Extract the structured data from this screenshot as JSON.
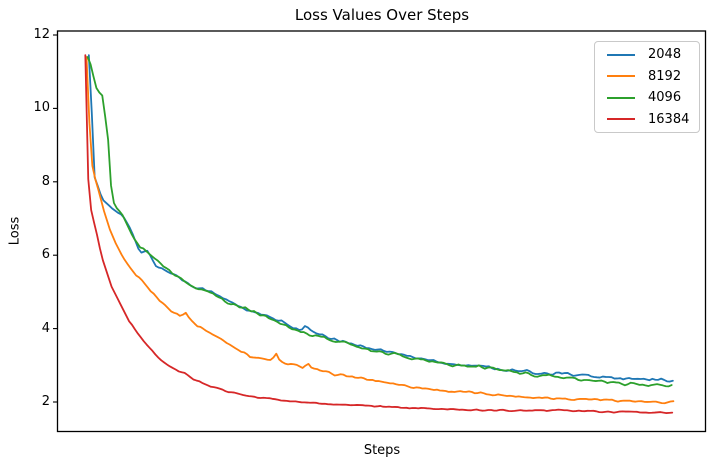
{
  "chart_data": {
    "type": "line",
    "title": "Loss Values Over Steps",
    "xlabel": "Steps",
    "ylabel": "Loss",
    "x_note": "x axis shows no tick labels; x values are normalized 0..1 across the plotted step range",
    "ylim": [
      1.15,
      12.15
    ],
    "y_ticks": [
      2,
      4,
      6,
      8,
      10,
      12
    ],
    "x_ticks": [],
    "grid": false,
    "legend_position": "upper right",
    "axis_color": "#000000",
    "legend_border_color": "#c9c9c9",
    "series": [
      {
        "name": "2048",
        "color": "#1f77b4",
        "points": [
          [
            -0.002,
            11.45
          ],
          [
            0.0,
            11.62
          ],
          [
            0.002,
            10.5
          ],
          [
            0.004,
            9.3
          ],
          [
            0.005,
            8.25
          ],
          [
            0.012,
            7.95
          ],
          [
            0.021,
            7.52
          ],
          [
            0.038,
            7.28
          ],
          [
            0.055,
            7.1
          ],
          [
            0.065,
            6.85
          ],
          [
            0.072,
            6.62
          ],
          [
            0.086,
            6.05
          ],
          [
            0.099,
            6.1
          ],
          [
            0.115,
            5.68
          ],
          [
            0.13,
            5.58
          ],
          [
            0.142,
            5.5
          ],
          [
            0.171,
            5.2
          ],
          [
            0.2,
            5.05
          ],
          [
            0.236,
            4.76
          ],
          [
            0.274,
            4.48
          ],
          [
            0.308,
            4.3
          ],
          [
            0.331,
            4.16
          ],
          [
            0.36,
            3.96
          ],
          [
            0.368,
            4.05
          ],
          [
            0.389,
            3.84
          ],
          [
            0.416,
            3.72
          ],
          [
            0.445,
            3.6
          ],
          [
            0.474,
            3.5
          ],
          [
            0.502,
            3.4
          ],
          [
            0.531,
            3.3
          ],
          [
            0.56,
            3.2
          ],
          [
            0.587,
            3.13
          ],
          [
            0.616,
            3.05
          ],
          [
            0.645,
            3.0
          ],
          [
            0.668,
            2.98
          ],
          [
            0.693,
            2.92
          ],
          [
            0.719,
            2.86
          ],
          [
            0.745,
            2.83
          ],
          [
            0.77,
            2.79
          ],
          [
            0.796,
            2.79
          ],
          [
            0.805,
            2.81
          ],
          [
            0.83,
            2.73
          ],
          [
            0.856,
            2.7
          ],
          [
            0.89,
            2.66
          ],
          [
            0.919,
            2.63
          ],
          [
            0.95,
            2.61
          ],
          [
            0.976,
            2.6
          ],
          [
            1.0,
            2.6
          ]
        ]
      },
      {
        "name": "8192",
        "color": "#ff7f0e",
        "points": [
          [
            -0.006,
            11.4
          ],
          [
            -0.004,
            11.62
          ],
          [
            -0.002,
            10.2
          ],
          [
            0.0,
            9.0
          ],
          [
            0.005,
            8.3
          ],
          [
            0.014,
            7.8
          ],
          [
            0.024,
            7.2
          ],
          [
            0.034,
            6.7
          ],
          [
            0.046,
            6.25
          ],
          [
            0.06,
            5.85
          ],
          [
            0.074,
            5.55
          ],
          [
            0.087,
            5.35
          ],
          [
            0.103,
            5.05
          ],
          [
            0.12,
            4.75
          ],
          [
            0.139,
            4.5
          ],
          [
            0.155,
            4.35
          ],
          [
            0.163,
            4.45
          ],
          [
            0.172,
            4.25
          ],
          [
            0.18,
            4.12
          ],
          [
            0.2,
            3.94
          ],
          [
            0.223,
            3.72
          ],
          [
            0.247,
            3.5
          ],
          [
            0.26,
            3.38
          ],
          [
            0.274,
            3.25
          ],
          [
            0.295,
            3.17
          ],
          [
            0.313,
            3.14
          ],
          [
            0.317,
            3.42
          ],
          [
            0.322,
            3.16
          ],
          [
            0.329,
            3.07
          ],
          [
            0.351,
            3.0
          ],
          [
            0.366,
            2.95
          ],
          [
            0.373,
            3.06
          ],
          [
            0.381,
            2.9
          ],
          [
            0.394,
            2.85
          ],
          [
            0.416,
            2.76
          ],
          [
            0.445,
            2.7
          ],
          [
            0.471,
            2.62
          ],
          [
            0.497,
            2.56
          ],
          [
            0.522,
            2.5
          ],
          [
            0.548,
            2.42
          ],
          [
            0.574,
            2.37
          ],
          [
            0.599,
            2.32
          ],
          [
            0.625,
            2.28
          ],
          [
            0.651,
            2.26
          ],
          [
            0.676,
            2.23
          ],
          [
            0.702,
            2.19
          ],
          [
            0.728,
            2.16
          ],
          [
            0.753,
            2.13
          ],
          [
            0.779,
            2.12
          ],
          [
            0.805,
            2.1
          ],
          [
            0.83,
            2.08
          ],
          [
            0.856,
            2.08
          ],
          [
            0.882,
            2.06
          ],
          [
            0.908,
            2.04
          ],
          [
            0.933,
            2.02
          ],
          [
            0.959,
            1.99
          ],
          [
            0.98,
            1.97
          ],
          [
            1.0,
            2.02
          ]
        ]
      },
      {
        "name": "4096",
        "color": "#2ca02c",
        "points": [
          [
            -0.004,
            11.4
          ],
          [
            -0.002,
            11.63
          ],
          [
            0.001,
            11.2
          ],
          [
            0.01,
            10.6
          ],
          [
            0.014,
            10.42
          ],
          [
            0.019,
            10.45
          ],
          [
            0.022,
            10.3
          ],
          [
            0.027,
            9.65
          ],
          [
            0.031,
            9.15
          ],
          [
            0.034,
            8.3
          ],
          [
            0.038,
            7.5
          ],
          [
            0.045,
            7.3
          ],
          [
            0.055,
            7.12
          ],
          [
            0.072,
            6.55
          ],
          [
            0.086,
            6.23
          ],
          [
            0.103,
            6.0
          ],
          [
            0.12,
            5.8
          ],
          [
            0.142,
            5.5
          ],
          [
            0.171,
            5.18
          ],
          [
            0.2,
            5.03
          ],
          [
            0.236,
            4.72
          ],
          [
            0.274,
            4.5
          ],
          [
            0.308,
            4.28
          ],
          [
            0.331,
            4.12
          ],
          [
            0.36,
            3.92
          ],
          [
            0.389,
            3.8
          ],
          [
            0.416,
            3.68
          ],
          [
            0.445,
            3.58
          ],
          [
            0.474,
            3.45
          ],
          [
            0.502,
            3.35
          ],
          [
            0.531,
            3.28
          ],
          [
            0.56,
            3.17
          ],
          [
            0.587,
            3.1
          ],
          [
            0.616,
            3.02
          ],
          [
            0.645,
            2.97
          ],
          [
            0.668,
            2.95
          ],
          [
            0.702,
            2.88
          ],
          [
            0.736,
            2.8
          ],
          [
            0.77,
            2.72
          ],
          [
            0.805,
            2.69
          ],
          [
            0.839,
            2.6
          ],
          [
            0.873,
            2.55
          ],
          [
            0.908,
            2.5
          ],
          [
            0.942,
            2.47
          ],
          [
            0.976,
            2.44
          ],
          [
            1.0,
            2.45
          ]
        ]
      },
      {
        "name": "16384",
        "color": "#d62728",
        "points": [
          [
            -0.008,
            11.45
          ],
          [
            -0.0065,
            11.63
          ],
          [
            -0.005,
            9.6
          ],
          [
            -0.004,
            8.4
          ],
          [
            -0.002,
            7.75
          ],
          [
            0.003,
            7.1
          ],
          [
            0.009,
            6.78
          ],
          [
            0.02,
            5.96
          ],
          [
            0.037,
            5.14
          ],
          [
            0.066,
            4.23
          ],
          [
            0.094,
            3.6
          ],
          [
            0.123,
            3.1
          ],
          [
            0.14,
            2.95
          ],
          [
            0.151,
            2.83
          ],
          [
            0.163,
            2.78
          ],
          [
            0.18,
            2.6
          ],
          [
            0.208,
            2.42
          ],
          [
            0.237,
            2.28
          ],
          [
            0.277,
            2.14
          ],
          [
            0.331,
            2.05
          ],
          [
            0.388,
            1.96
          ],
          [
            0.445,
            1.92
          ],
          [
            0.502,
            1.87
          ],
          [
            0.56,
            1.83
          ],
          [
            0.616,
            1.8
          ],
          [
            0.668,
            1.78
          ],
          [
            0.719,
            1.77
          ],
          [
            0.77,
            1.76
          ],
          [
            0.805,
            1.78
          ],
          [
            0.856,
            1.74
          ],
          [
            0.908,
            1.73
          ],
          [
            0.959,
            1.72
          ],
          [
            1.0,
            1.7
          ]
        ]
      }
    ]
  }
}
